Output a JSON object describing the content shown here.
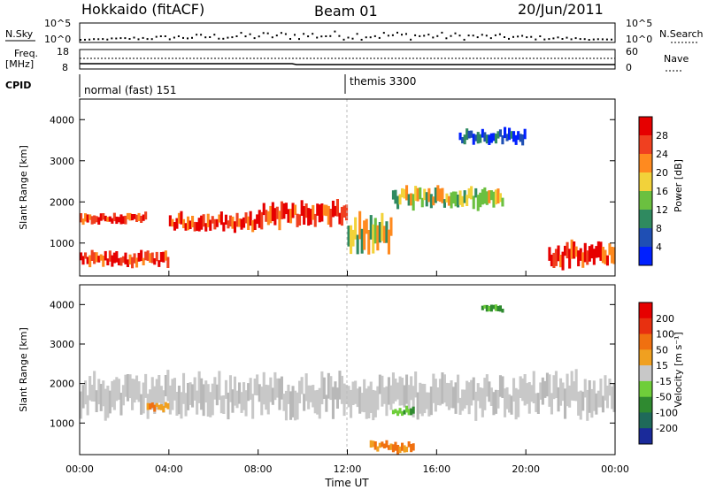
{
  "header": {
    "station": "Hokkaido (fitACF)",
    "beam": "Beam 01",
    "date": "20/Jun/2011"
  },
  "panels": {
    "sky": {
      "left_label": "N.Sky",
      "right_label": "N.Search",
      "left_ticks": [
        "10^5",
        "10^0"
      ],
      "right_ticks": [
        "10^5",
        "10^0"
      ]
    },
    "freq": {
      "left_label_1": "Freq.",
      "left_label_2": "[MHz]",
      "right_label": "Nave",
      "left_ticks": [
        "18",
        "8"
      ],
      "right_ticks": [
        "60",
        "0"
      ]
    },
    "cpid": {
      "label": "CPID",
      "modes": [
        {
          "name": "normal (fast) 151"
        },
        {
          "name": "themis 3300"
        }
      ]
    }
  },
  "chart_data": [
    {
      "type": "heatmap",
      "name": "power",
      "ylabel": "Slant Range [km]",
      "y_ticks": [
        "1000",
        "2000",
        "3000",
        "4000"
      ],
      "ylim": [
        200,
        4500
      ],
      "colorbar": {
        "label": "Power [dB]",
        "ticks": [
          "4",
          "8",
          "12",
          "16",
          "20",
          "24",
          "28"
        ],
        "colors": [
          "#0020ff",
          "#1f4fb4",
          "#2f8a60",
          "#6bc040",
          "#f2d23a",
          "#ff8a1f",
          "#f04020",
          "#e60000"
        ]
      },
      "bands": [
        {
          "start": 0,
          "end": 3,
          "center": 1600,
          "width": 200,
          "level": "high"
        },
        {
          "start": 0,
          "end": 4,
          "center": 600,
          "width": 250,
          "level": "high"
        },
        {
          "start": 4,
          "end": 8,
          "center": 1500,
          "width": 300,
          "level": "high"
        },
        {
          "start": 8,
          "end": 12,
          "center": 1700,
          "width": 400,
          "level": "high"
        },
        {
          "start": 12,
          "end": 14,
          "center": 1200,
          "width": 600,
          "level": "mid"
        },
        {
          "start": 14,
          "end": 19,
          "center": 2100,
          "width": 350,
          "level": "mid"
        },
        {
          "start": 17,
          "end": 20,
          "center": 3600,
          "width": 250,
          "level": "low"
        },
        {
          "start": 21,
          "end": 24,
          "center": 700,
          "width": 400,
          "level": "high"
        }
      ]
    },
    {
      "type": "heatmap",
      "name": "velocity",
      "xlabel": "Time UT",
      "ylabel": "Slant Range [km]",
      "x_ticks": [
        "00:00",
        "04:00",
        "08:00",
        "12:00",
        "16:00",
        "20:00",
        "00:00"
      ],
      "y_ticks": [
        "1000",
        "2000",
        "3000",
        "4000"
      ],
      "ylim": [
        200,
        4500
      ],
      "colorbar": {
        "label": "Velocity [m s⁻¹]",
        "ticks": [
          "200",
          "100",
          "50",
          "15",
          "-15",
          "-50",
          "-100",
          "-200"
        ],
        "colors": [
          "#1a2a9a",
          "#1f6a5a",
          "#2f8a30",
          "#6fce3a",
          "#c8c8c8",
          "#f0a020",
          "#f07010",
          "#e83010",
          "#e60000"
        ]
      },
      "bands": [
        {
          "start": 0,
          "end": 24,
          "center": 1700,
          "width": 700,
          "level": "neutral"
        },
        {
          "start": 3,
          "end": 4,
          "center": 1400,
          "width": 150,
          "level": "away"
        },
        {
          "start": 13,
          "end": 15,
          "center": 400,
          "width": 200,
          "level": "away"
        },
        {
          "start": 14,
          "end": 15,
          "center": 1300,
          "width": 150,
          "level": "toward"
        },
        {
          "start": 18,
          "end": 19,
          "center": 3900,
          "width": 150,
          "level": "toward"
        }
      ]
    }
  ]
}
